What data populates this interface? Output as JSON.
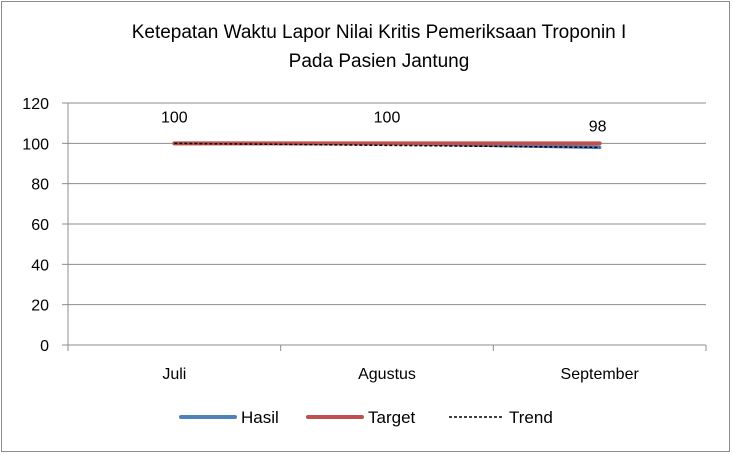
{
  "chart_data": {
    "type": "line",
    "title_line1": "Ketepatan Waktu Lapor Nilai Kritis Pemeriksaan Troponin I",
    "title_line2": "Pada Pasien Jantung",
    "categories": [
      "Juli",
      "Agustus",
      "September"
    ],
    "ylim": [
      0,
      120
    ],
    "yticks": [
      0,
      20,
      40,
      60,
      80,
      100,
      120
    ],
    "grid": true,
    "legend_position": "bottom",
    "series": [
      {
        "name": "Hasil",
        "values": [
          100,
          100,
          98
        ],
        "color": "#4f81bd",
        "style": "solid",
        "data_labels": [
          "100",
          "100",
          "98"
        ]
      },
      {
        "name": "Target",
        "values": [
          100,
          100,
          100
        ],
        "color": "#c0504d",
        "style": "solid"
      },
      {
        "name": "Trend",
        "values": [
          100,
          99,
          98
        ],
        "color": "#000000",
        "style": "dashed"
      }
    ]
  }
}
